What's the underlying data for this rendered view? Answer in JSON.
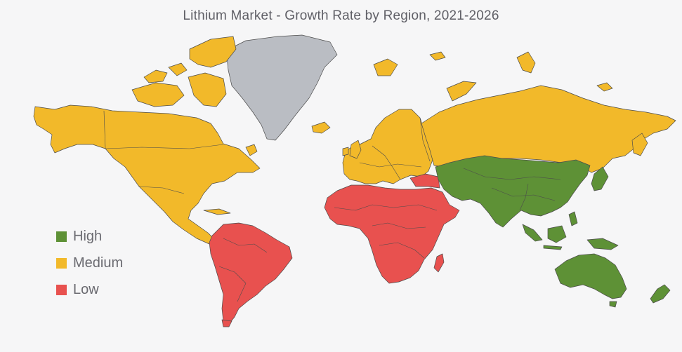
{
  "title": "Lithium Market - Growth Rate by Region, 2021-2026",
  "colors": {
    "high": "#5e9136",
    "medium": "#f2b92a",
    "low": "#e8514f",
    "no_data": "#babdc3",
    "background": "#f6f6f7"
  },
  "legend": [
    {
      "key": "high",
      "label": "High",
      "color": "#5e9136"
    },
    {
      "key": "medium",
      "label": "Medium",
      "color": "#f2b92a"
    },
    {
      "key": "low",
      "label": "Low",
      "color": "#e8514f"
    }
  ],
  "regions": [
    {
      "name": "North America",
      "level": "medium"
    },
    {
      "name": "Europe",
      "level": "medium"
    },
    {
      "name": "Russia",
      "level": "medium"
    },
    {
      "name": "South America",
      "level": "low"
    },
    {
      "name": "Middle East and Africa",
      "level": "low"
    },
    {
      "name": "Asia-Pacific",
      "level": "high"
    },
    {
      "name": "Greenland",
      "level": "no_data"
    }
  ]
}
